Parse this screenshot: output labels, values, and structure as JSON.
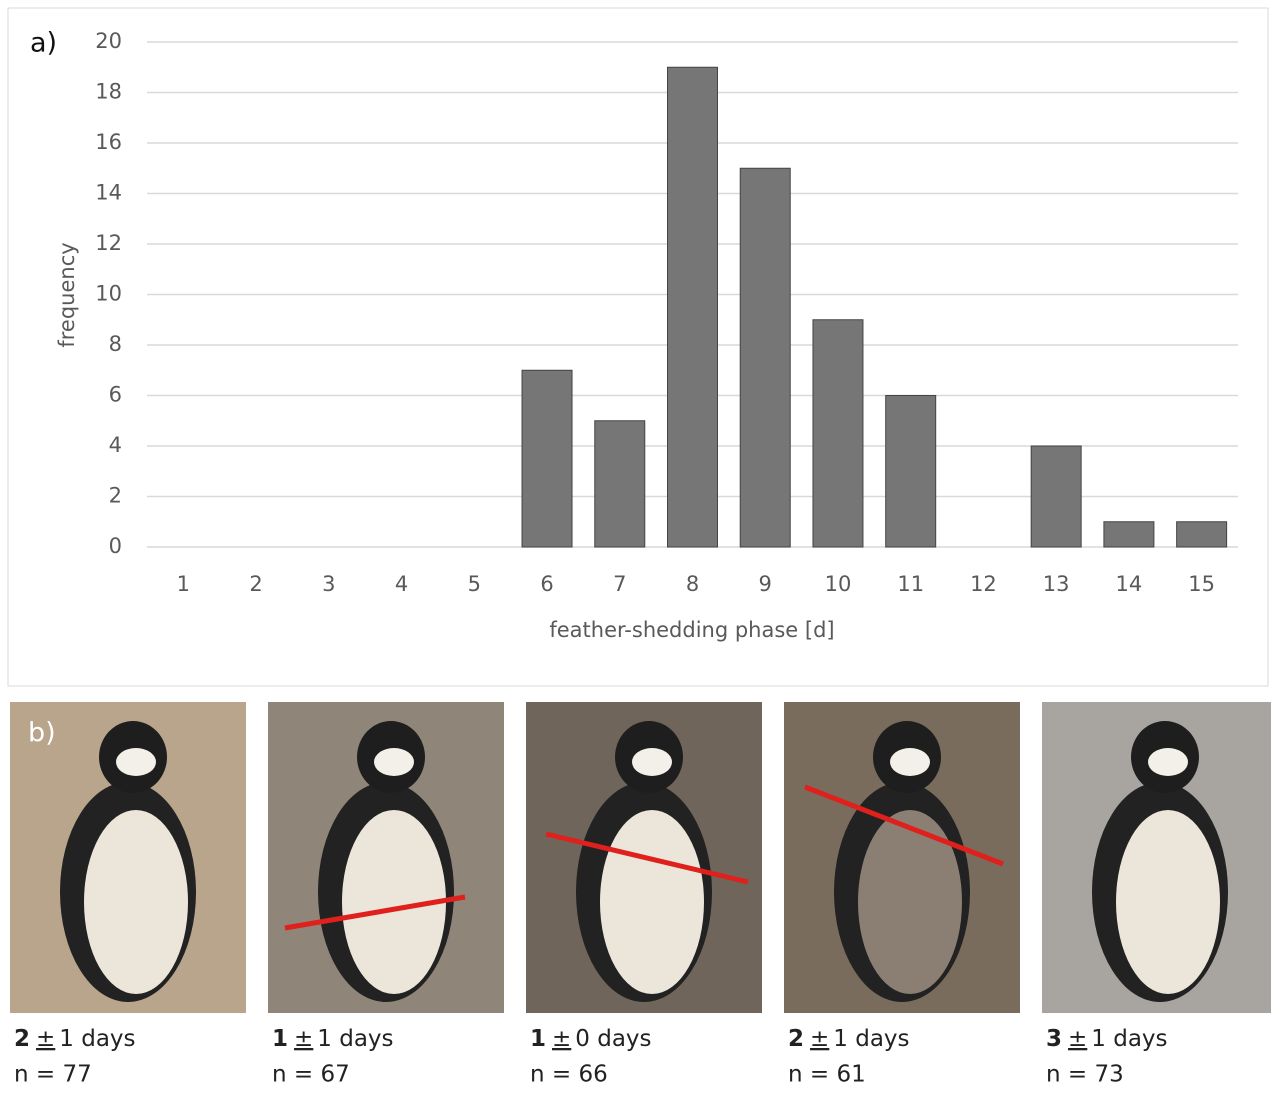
{
  "chart_data": {
    "type": "bar",
    "panel_label": "a)",
    "x_label": "feather-shedding phase [d]",
    "y_label": "frequency",
    "categories": [
      "1",
      "2",
      "3",
      "4",
      "5",
      "6",
      "7",
      "8",
      "9",
      "10",
      "11",
      "12",
      "13",
      "14",
      "15"
    ],
    "values": [
      0,
      0,
      0,
      0,
      0,
      7,
      5,
      19,
      15,
      9,
      6,
      0,
      4,
      1,
      1
    ],
    "color": "#767676",
    "ylim": [
      0,
      20
    ],
    "yticks": [
      0,
      2,
      4,
      6,
      8,
      10,
      12,
      14,
      16,
      18,
      20
    ],
    "grid": true
  },
  "panel_b": {
    "label": "b)",
    "photos": [
      {
        "mean": "2",
        "pm": "±",
        "rest": "1 days",
        "n": "n = 77"
      },
      {
        "mean": "1",
        "pm": "±",
        "rest": "1 days",
        "n": "n = 67"
      },
      {
        "mean": "1",
        "pm": "±",
        "rest": "0 days",
        "n": "n = 66"
      },
      {
        "mean": "2",
        "pm": "±",
        "rest": "1 days",
        "n": "n = 61"
      },
      {
        "mean": "3",
        "pm": "±",
        "rest": "1 days",
        "n": "n = 73"
      }
    ]
  }
}
